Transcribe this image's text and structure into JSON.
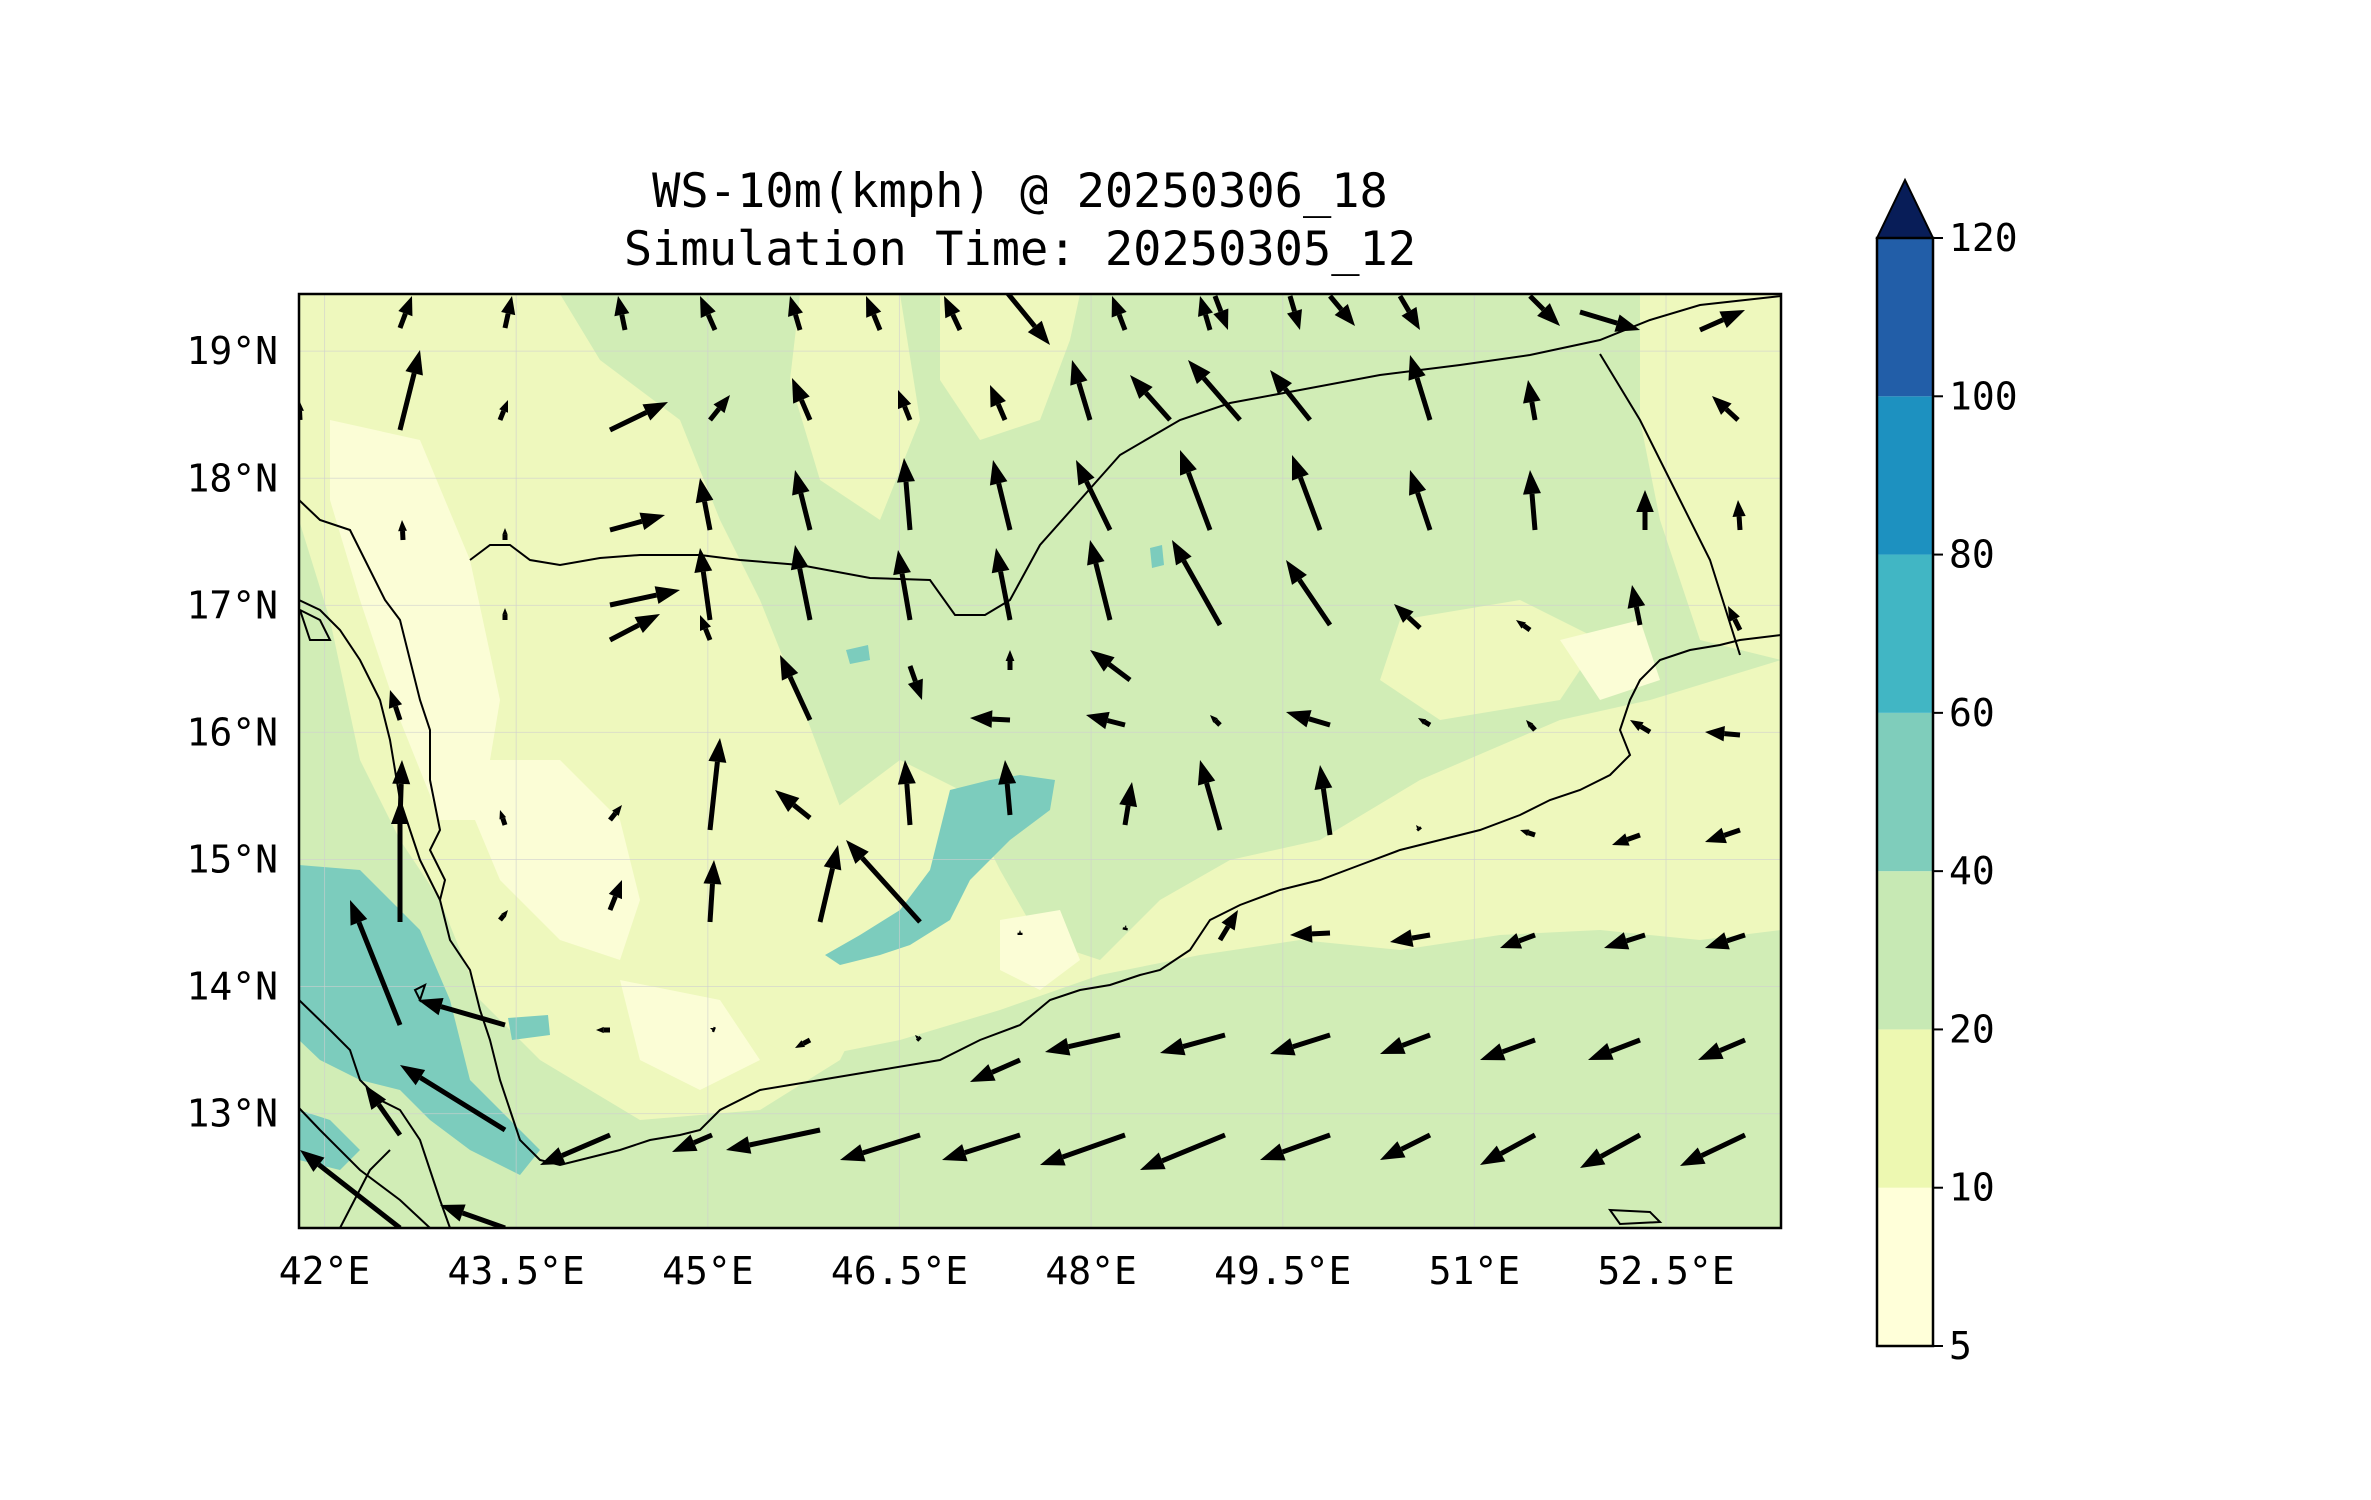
{
  "title": {
    "line1": "WS-10m(kmph) @ 20250306_18",
    "line2": "Simulation Time: 20250305_12"
  },
  "map": {
    "lon_range": [
      41.8,
      53.4
    ],
    "lat_range": [
      12.1,
      19.45
    ],
    "x_ticks": [
      {
        "value": 42.0,
        "label": "42°E"
      },
      {
        "value": 43.5,
        "label": "43.5°E"
      },
      {
        "value": 45.0,
        "label": "45°E"
      },
      {
        "value": 46.5,
        "label": "46.5°E"
      },
      {
        "value": 48.0,
        "label": "48°E"
      },
      {
        "value": 49.5,
        "label": "49.5°E"
      },
      {
        "value": 51.0,
        "label": "51°E"
      },
      {
        "value": 52.5,
        "label": "52.5°E"
      }
    ],
    "y_ticks": [
      {
        "value": 13,
        "label": "13°N"
      },
      {
        "value": 14,
        "label": "14°N"
      },
      {
        "value": 15,
        "label": "15°N"
      },
      {
        "value": 16,
        "label": "16°N"
      },
      {
        "value": 17,
        "label": "17°N"
      },
      {
        "value": 18,
        "label": "18°N"
      },
      {
        "value": 19,
        "label": "19°N"
      }
    ],
    "gridlines": true,
    "variable": "10 m wind speed (kmph) with wind vectors"
  },
  "colorbar": {
    "levels": [
      5,
      10,
      20,
      40,
      60,
      80,
      100,
      120
    ],
    "labels": [
      "5",
      "10",
      "20",
      "40",
      "60",
      "80",
      "100",
      "120"
    ],
    "colors": [
      "#ffffd9",
      "#edf8b1",
      "#c7e9b4",
      "#7fcdbb",
      "#41b6c4",
      "#1d91c0",
      "#225ea8",
      "#253494"
    ],
    "extend_color": "#081d58",
    "extend": "max"
  },
  "colors": {
    "c5": "#fbfdd6",
    "c10": "#eef8bd",
    "c20": "#d1edb6",
    "c40": "#7cccbd",
    "vector": "#000000",
    "coast": "#000000"
  }
}
